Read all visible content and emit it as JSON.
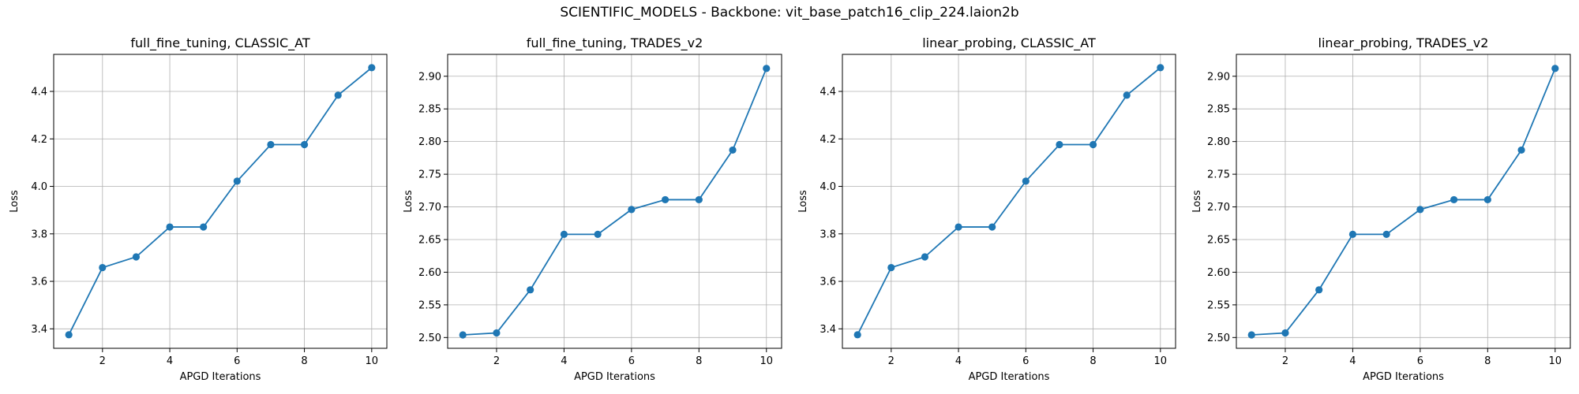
{
  "figure": {
    "suptitle": "SCIENTIFIC_MODELS - Backbone: vit_base_patch16_clip_224.laion2b"
  },
  "chart_data": [
    {
      "type": "line",
      "title": "full_fine_tuning, CLASSIC_AT",
      "xlabel": "APGD Iterations",
      "ylabel": "Loss",
      "x": [
        1,
        2,
        3,
        4,
        5,
        6,
        7,
        8,
        9,
        10
      ],
      "xticks": [
        2,
        4,
        6,
        8,
        10
      ],
      "yticks": [
        3.4,
        3.6,
        3.8,
        4.0,
        4.2,
        4.4
      ],
      "ytick_labels": [
        "3.4",
        "3.6",
        "3.8",
        "4.0",
        "4.2",
        "4.4"
      ],
      "xlim": [
        0.55,
        10.45
      ],
      "ylim": [
        3.318,
        4.556
      ],
      "grid": true,
      "series": [
        {
          "color": "#1f77b4",
          "values": [
            3.375,
            3.658,
            3.703,
            3.829,
            3.829,
            4.022,
            4.176,
            4.176,
            4.384,
            4.5
          ]
        }
      ]
    },
    {
      "type": "line",
      "title": "full_fine_tuning, TRADES_v2",
      "xlabel": "APGD Iterations",
      "ylabel": "Loss",
      "x": [
        1,
        2,
        3,
        4,
        5,
        6,
        7,
        8,
        9,
        10
      ],
      "xticks": [
        2,
        4,
        6,
        8,
        10
      ],
      "yticks": [
        2.5,
        2.55,
        2.6,
        2.65,
        2.7,
        2.75,
        2.8,
        2.85,
        2.9
      ],
      "ytick_labels": [
        "2.50",
        "2.55",
        "2.60",
        "2.65",
        "2.70",
        "2.75",
        "2.80",
        "2.85",
        "2.90"
      ],
      "xlim": [
        0.55,
        10.45
      ],
      "ylim": [
        2.4835,
        2.9335
      ],
      "grid": true,
      "series": [
        {
          "color": "#1f77b4",
          "values": [
            2.504,
            2.507,
            2.573,
            2.658,
            2.658,
            2.696,
            2.711,
            2.711,
            2.787,
            2.912
          ]
        }
      ]
    },
    {
      "type": "line",
      "title": "linear_probing, CLASSIC_AT",
      "xlabel": "APGD Iterations",
      "ylabel": "Loss",
      "x": [
        1,
        2,
        3,
        4,
        5,
        6,
        7,
        8,
        9,
        10
      ],
      "xticks": [
        2,
        4,
        6,
        8,
        10
      ],
      "yticks": [
        3.4,
        3.6,
        3.8,
        4.0,
        4.2,
        4.4
      ],
      "ytick_labels": [
        "3.4",
        "3.6",
        "3.8",
        "4.0",
        "4.2",
        "4.4"
      ],
      "xlim": [
        0.55,
        10.45
      ],
      "ylim": [
        3.318,
        4.556
      ],
      "grid": true,
      "series": [
        {
          "color": "#1f77b4",
          "values": [
            3.375,
            3.658,
            3.703,
            3.829,
            3.829,
            4.022,
            4.176,
            4.176,
            4.384,
            4.5
          ]
        }
      ]
    },
    {
      "type": "line",
      "title": "linear_probing, TRADES_v2",
      "xlabel": "APGD Iterations",
      "ylabel": "Loss",
      "x": [
        1,
        2,
        3,
        4,
        5,
        6,
        7,
        8,
        9,
        10
      ],
      "xticks": [
        2,
        4,
        6,
        8,
        10
      ],
      "yticks": [
        2.5,
        2.55,
        2.6,
        2.65,
        2.7,
        2.75,
        2.8,
        2.85,
        2.9
      ],
      "ytick_labels": [
        "2.50",
        "2.55",
        "2.60",
        "2.65",
        "2.70",
        "2.75",
        "2.80",
        "2.85",
        "2.90"
      ],
      "xlim": [
        0.55,
        10.45
      ],
      "ylim": [
        2.4835,
        2.9335
      ],
      "grid": true,
      "series": [
        {
          "color": "#1f77b4",
          "values": [
            2.504,
            2.507,
            2.573,
            2.658,
            2.658,
            2.696,
            2.711,
            2.711,
            2.787,
            2.912
          ]
        }
      ]
    }
  ]
}
